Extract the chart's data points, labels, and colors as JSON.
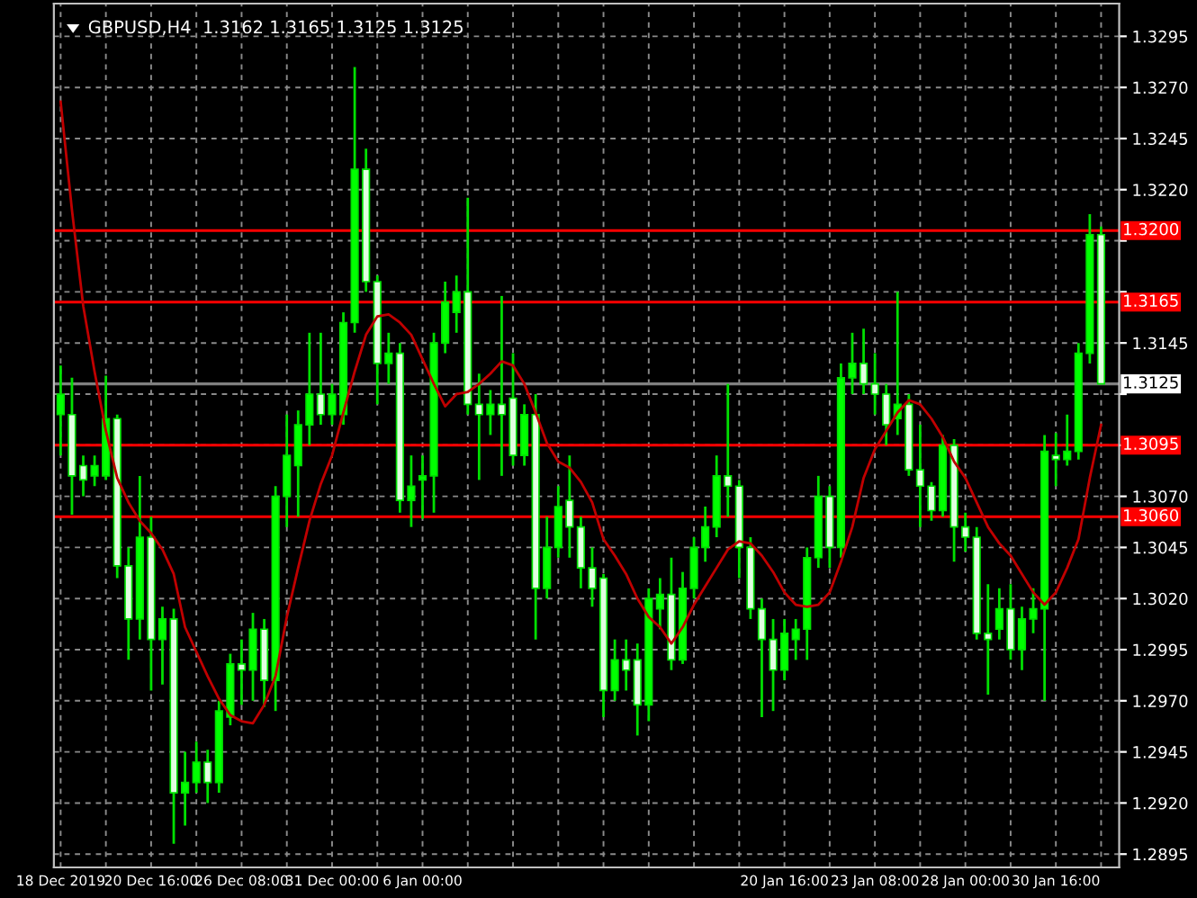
{
  "chart_data": {
    "type": "candlestick",
    "title": "GBPUSD,H4  1.3162 1.3165 1.3125 1.3125",
    "categories": [
      "18 Dec 2019",
      null,
      null,
      null,
      null,
      null,
      null,
      null,
      "20 Dec 16:00",
      null,
      null,
      null,
      null,
      null,
      null,
      null,
      "26 Dec 08:00",
      null,
      null,
      null,
      null,
      null,
      null,
      null,
      "31 Dec 00:00",
      null,
      null,
      null,
      null,
      null,
      null,
      null,
      "6 Jan 00:00",
      null,
      null,
      null,
      null,
      null,
      null,
      null,
      null,
      null,
      null,
      null,
      null,
      null,
      null,
      null,
      null,
      null,
      null,
      null,
      null,
      null,
      null,
      null,
      null,
      null,
      null,
      null,
      null,
      null,
      null,
      null,
      "20 Jan 16:00",
      null,
      null,
      null,
      null,
      null,
      null,
      null,
      "23 Jan 08:00",
      null,
      null,
      null,
      null,
      null,
      null,
      null,
      "28 Jan 00:00",
      null,
      null,
      null,
      null,
      null,
      null,
      null,
      "30 Jan 16:00",
      null,
      null,
      null,
      null
    ],
    "ohlc": [
      [
        1.311,
        1.3134,
        1.309,
        1.312
      ],
      [
        1.311,
        1.3128,
        1.3061,
        1.308
      ],
      [
        1.3085,
        1.309,
        1.307,
        1.3078
      ],
      [
        1.308,
        1.309,
        1.3075,
        1.3085
      ],
      [
        1.308,
        1.3129,
        1.3078,
        1.3108
      ],
      [
        1.3108,
        1.311,
        1.303,
        1.3036
      ],
      [
        1.3036,
        1.3045,
        1.299,
        1.301
      ],
      [
        1.301,
        1.308,
        1.3,
        1.305
      ],
      [
        1.305,
        1.306,
        1.2975,
        1.3
      ],
      [
        1.3,
        1.3016,
        1.2978,
        1.301
      ],
      [
        1.301,
        1.3015,
        1.29,
        1.2925
      ],
      [
        1.2925,
        1.2945,
        1.2909,
        1.293
      ],
      [
        1.293,
        1.295,
        1.2925,
        1.294
      ],
      [
        1.294,
        1.2946,
        1.292,
        1.293
      ],
      [
        1.293,
        1.297,
        1.2925,
        1.2965
      ],
      [
        1.2962,
        1.2993,
        1.2958,
        1.2988
      ],
      [
        1.2988,
        1.3,
        1.2968,
        1.2985
      ],
      [
        1.2985,
        1.3013,
        1.297,
        1.3005
      ],
      [
        1.3005,
        1.301,
        1.2967,
        1.298
      ],
      [
        1.298,
        1.3075,
        1.2965,
        1.307
      ],
      [
        1.307,
        1.311,
        1.3055,
        1.309
      ],
      [
        1.3085,
        1.3112,
        1.306,
        1.3105
      ],
      [
        1.3105,
        1.315,
        1.3095,
        1.312
      ],
      [
        1.312,
        1.315,
        1.3105,
        1.311
      ],
      [
        1.311,
        1.3125,
        1.3105,
        1.312
      ],
      [
        1.311,
        1.316,
        1.3105,
        1.3155
      ],
      [
        1.3155,
        1.328,
        1.315,
        1.323
      ],
      [
        1.323,
        1.324,
        1.317,
        1.3175
      ],
      [
        1.3175,
        1.3178,
        1.3115,
        1.3135
      ],
      [
        1.3135,
        1.315,
        1.3125,
        1.314
      ],
      [
        1.314,
        1.3145,
        1.3062,
        1.3068
      ],
      [
        1.3068,
        1.309,
        1.3055,
        1.3075
      ],
      [
        1.3078,
        1.309,
        1.3059,
        1.308
      ],
      [
        1.308,
        1.315,
        1.3062,
        1.3145
      ],
      [
        1.3145,
        1.3175,
        1.314,
        1.3165
      ],
      [
        1.316,
        1.3178,
        1.315,
        1.317
      ],
      [
        1.317,
        1.3216,
        1.311,
        1.3115
      ],
      [
        1.3115,
        1.313,
        1.3078,
        1.311
      ],
      [
        1.311,
        1.3122,
        1.31,
        1.3115
      ],
      [
        1.3115,
        1.3168,
        1.308,
        1.311
      ],
      [
        1.3118,
        1.314,
        1.3085,
        1.309
      ],
      [
        1.309,
        1.3115,
        1.3085,
        1.311
      ],
      [
        1.311,
        1.312,
        1.3,
        1.3025
      ],
      [
        1.3025,
        1.306,
        1.302,
        1.3045
      ],
      [
        1.3045,
        1.3075,
        1.304,
        1.3065
      ],
      [
        1.3068,
        1.309,
        1.304,
        1.3055
      ],
      [
        1.3055,
        1.306,
        1.3025,
        1.3035
      ],
      [
        1.3035,
        1.3045,
        1.3016,
        1.3025
      ],
      [
        1.303,
        1.3032,
        1.2962,
        1.2975
      ],
      [
        1.2975,
        1.3,
        1.297,
        1.299
      ],
      [
        1.299,
        1.3,
        1.2975,
        1.2985
      ],
      [
        1.299,
        1.2998,
        1.2953,
        1.2968
      ],
      [
        1.2968,
        1.3025,
        1.296,
        1.302
      ],
      [
        1.3015,
        1.303,
        1.3005,
        1.3022
      ],
      [
        1.3022,
        1.304,
        1.2985,
        1.299
      ],
      [
        1.299,
        1.3033,
        1.2988,
        1.3025
      ],
      [
        1.3025,
        1.305,
        1.302,
        1.3045
      ],
      [
        1.3045,
        1.3065,
        1.3038,
        1.3055
      ],
      [
        1.3055,
        1.309,
        1.305,
        1.308
      ],
      [
        1.308,
        1.3125,
        1.306,
        1.3075
      ],
      [
        1.3075,
        1.3078,
        1.303,
        1.3045
      ],
      [
        1.3045,
        1.305,
        1.301,
        1.3015
      ],
      [
        1.3015,
        1.302,
        1.2962,
        1.3
      ],
      [
        1.3,
        1.301,
        1.2965,
        1.2985
      ],
      [
        1.2985,
        1.301,
        1.298,
        1.3003
      ],
      [
        1.3,
        1.301,
        1.299,
        1.3005
      ],
      [
        1.3005,
        1.3045,
        1.299,
        1.304
      ],
      [
        1.304,
        1.308,
        1.3035,
        1.307
      ],
      [
        1.307,
        1.3075,
        1.3035,
        1.3045
      ],
      [
        1.3045,
        1.3135,
        1.304,
        1.3128
      ],
      [
        1.3128,
        1.315,
        1.312,
        1.3135
      ],
      [
        1.3135,
        1.3152,
        1.312,
        1.3125
      ],
      [
        1.3125,
        1.314,
        1.311,
        1.312
      ],
      [
        1.312,
        1.3125,
        1.3095,
        1.3105
      ],
      [
        1.3108,
        1.317,
        1.31,
        1.3115
      ],
      [
        1.3115,
        1.312,
        1.308,
        1.3083
      ],
      [
        1.3083,
        1.3105,
        1.3055,
        1.3075
      ],
      [
        1.3075,
        1.3077,
        1.3058,
        1.3063
      ],
      [
        1.3063,
        1.31,
        1.306,
        1.3095
      ],
      [
        1.3095,
        1.3098,
        1.3038,
        1.3055
      ],
      [
        1.3055,
        1.3062,
        1.3043,
        1.305
      ],
      [
        1.305,
        1.3055,
        1.3,
        1.3003
      ],
      [
        1.3003,
        1.3027,
        1.2973,
        1.3
      ],
      [
        1.3005,
        1.3025,
        1.3,
        1.3015
      ],
      [
        1.3015,
        1.3027,
        1.299,
        1.2995
      ],
      [
        1.2995,
        1.3016,
        1.2985,
        1.301
      ],
      [
        1.301,
        1.3025,
        1.3003,
        1.3015
      ],
      [
        1.3015,
        1.31,
        1.297,
        1.3092
      ],
      [
        1.309,
        1.3101,
        1.3075,
        1.3088
      ],
      [
        1.3088,
        1.311,
        1.3085,
        1.3092
      ],
      [
        1.3092,
        1.3145,
        1.3088,
        1.314
      ],
      [
        1.314,
        1.3208,
        1.3135,
        1.3198
      ],
      [
        1.3198,
        1.3202,
        1.3125,
        1.3125
      ]
    ],
    "series": [
      {
        "type": "line",
        "color": "#c00000",
        "values": [
          1.3263,
          1.321,
          1.3163,
          1.3131,
          1.3102,
          1.3079,
          1.3067,
          1.3058,
          1.3052,
          1.3044,
          1.3032,
          1.3006,
          1.2994,
          1.2982,
          1.2971,
          1.2963,
          1.296,
          1.2959,
          1.2968,
          1.2982,
          1.3011,
          1.3035,
          1.3058,
          1.3076,
          1.309,
          1.3111,
          1.3131,
          1.3149,
          1.3158,
          1.3159,
          1.3155,
          1.3149,
          1.3137,
          1.3125,
          1.3114,
          1.312,
          1.3121,
          1.3125,
          1.313,
          1.3136,
          1.3134,
          1.3125,
          1.3111,
          1.3096,
          1.3087,
          1.3084,
          1.3077,
          1.3067,
          1.3049,
          1.3041,
          1.3032,
          1.302,
          1.3011,
          1.3006,
          1.2998,
          1.3006,
          1.3017,
          1.3026,
          1.3035,
          1.3044,
          1.3048,
          1.3047,
          1.3041,
          1.3033,
          1.3023,
          1.3017,
          1.3016,
          1.3017,
          1.3023,
          1.3038,
          1.3055,
          1.3079,
          1.3093,
          1.3102,
          1.3111,
          1.3117,
          1.3115,
          1.3108,
          1.3099,
          1.3087,
          1.3079,
          1.3067,
          1.3055,
          1.3047,
          1.3041,
          1.3032,
          1.3023,
          1.3017,
          1.3023,
          1.3035,
          1.3049,
          1.3079,
          1.3105
        ]
      }
    ],
    "ylim": [
      1.28885,
      1.3311
    ],
    "yticks": [
      1.2895,
      {
        "value": 1.292,
        "label": "1.2920"
      },
      1.2945,
      {
        "value": 1.297,
        "label": "1.2970"
      },
      1.2995,
      {
        "value": 1.302,
        "label": "1.3020"
      },
      1.3045,
      {
        "value": 1.307,
        "label": "1.3070"
      },
      {
        "value": 1.3095,
        "label": null
      },
      {
        "value": 1.312,
        "label": null
      },
      1.3145,
      {
        "value": 1.317,
        "label": null
      },
      {
        "value": 1.3195,
        "label": null
      },
      {
        "value": 1.322,
        "label": "1.3220"
      },
      1.3245,
      {
        "value": 1.327,
        "label": "1.3270"
      },
      1.3295
    ],
    "ref_lines": [
      {
        "axis": "y",
        "value": 1.32,
        "label": "1.3200",
        "color": "#ff0000"
      },
      {
        "axis": "y",
        "value": 1.3165,
        "label": "1.3165",
        "color": "#ff0000"
      },
      {
        "axis": "y",
        "value": 1.3095,
        "label": "1.3095",
        "color": "#ff0000"
      },
      {
        "axis": "y",
        "value": 1.306,
        "label": "1.3060",
        "color": "#ff0000"
      },
      {
        "axis": "y",
        "value": 1.3125,
        "label": "1.3125",
        "color": "#808080"
      }
    ],
    "grid": true
  }
}
